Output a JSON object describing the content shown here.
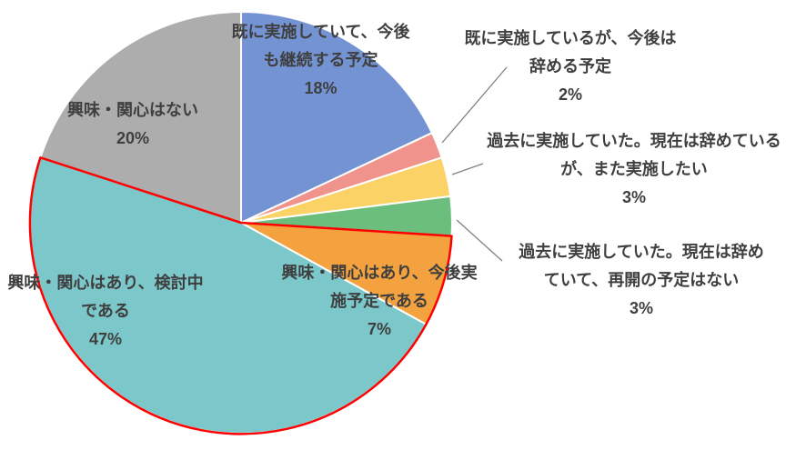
{
  "chart_data": {
    "type": "pie",
    "title": "",
    "legend_position": "none",
    "slice_border_color": "#FFFFFF",
    "slices": [
      {
        "label": "既に実施していて、今後も継続する予定",
        "value": 18,
        "display": "18%",
        "color": "#7493D3"
      },
      {
        "label": "既に実施しているが、今後は辞める予定",
        "value": 2,
        "display": "2%",
        "color": "#F0938C"
      },
      {
        "label": "過去に実施していた。現在は辞めているが、また実施したい",
        "value": 3,
        "display": "3%",
        "color": "#FAD265"
      },
      {
        "label": "過去に実施していた。現在は辞めていて、再開の予定はない",
        "value": 3,
        "display": "3%",
        "color": "#6CBE7C"
      },
      {
        "label": "興味・関心はあり、今後実施予定である",
        "value": 7,
        "display": "7%",
        "color": "#F3A23F"
      },
      {
        "label": "興味・関心はあり、検討中である",
        "value": 47,
        "display": "47%",
        "color": "#7CC7CA"
      },
      {
        "label": "興味・関心はない",
        "value": 20,
        "display": "20%",
        "color": "#ADADAD"
      }
    ],
    "highlight": {
      "color": "#FF0000",
      "slice_indices": [
        4,
        5
      ]
    }
  },
  "labels": {
    "continue": {
      "lines": [
        "既に実施していて、今後",
        "も継続する予定",
        "18%"
      ]
    },
    "quit": {
      "lines": [
        "既に実施しているが、今後は",
        "辞める予定",
        "2%"
      ]
    },
    "past_restart": {
      "lines": [
        "過去に実施していた。現在は辞めている",
        "が、また実施したい",
        "3%"
      ]
    },
    "past_no_restart": {
      "lines": [
        "過去に実施していた。現在は辞め",
        "ていて、再開の予定はない",
        "3%"
      ]
    },
    "planned": {
      "lines": [
        "興味・関心はあり、今後実",
        "施予定である",
        "7%"
      ]
    },
    "considering": {
      "lines": [
        "興味・関心はあり、検討中",
        "である",
        "47%"
      ]
    },
    "no_interest": {
      "lines": [
        "興味・関心はない",
        "20%"
      ]
    }
  }
}
